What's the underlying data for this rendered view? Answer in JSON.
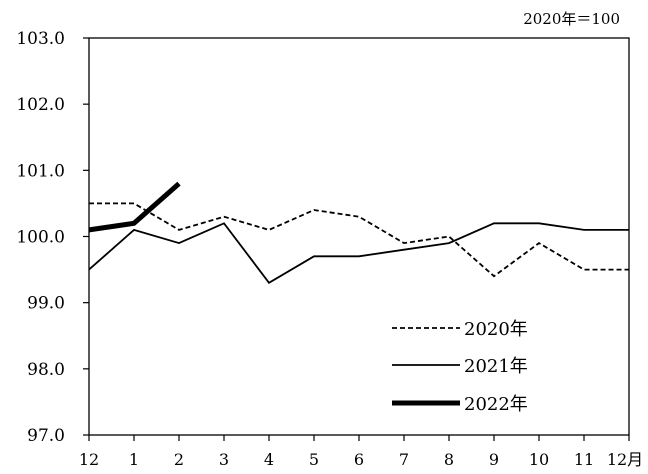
{
  "chart_data": {
    "type": "line",
    "unit_note": "2020年＝100",
    "categories": [
      "12",
      "1",
      "2",
      "3",
      "4",
      "5",
      "6",
      "7",
      "8",
      "9",
      "10",
      "11",
      "12月"
    ],
    "ylim": [
      97.0,
      103.0
    ],
    "yticks": [
      "103.0",
      "102.0",
      "101.0",
      "100.0",
      "99.0",
      "98.0",
      "97.0"
    ],
    "ytick_values": [
      103,
      102,
      101,
      100,
      99,
      98,
      97
    ],
    "grid": false,
    "legend_position": "bottom-right",
    "series": [
      {
        "name": "2020年",
        "style": "dashed",
        "color": "#000000",
        "values": [
          100.5,
          100.5,
          100.1,
          100.3,
          100.1,
          100.4,
          100.3,
          99.9,
          100.0,
          99.4,
          99.9,
          99.5,
          99.5
        ]
      },
      {
        "name": "2021年",
        "style": "solid",
        "color": "#000000",
        "values": [
          99.5,
          100.1,
          99.9,
          100.2,
          99.3,
          99.7,
          99.7,
          99.8,
          99.9,
          100.2,
          100.2,
          100.1,
          100.1
        ]
      },
      {
        "name": "2022年",
        "style": "bold",
        "color": "#000000",
        "values": [
          100.1,
          100.2,
          100.8,
          null,
          null,
          null,
          null,
          null,
          null,
          null,
          null,
          null,
          null
        ]
      }
    ]
  }
}
